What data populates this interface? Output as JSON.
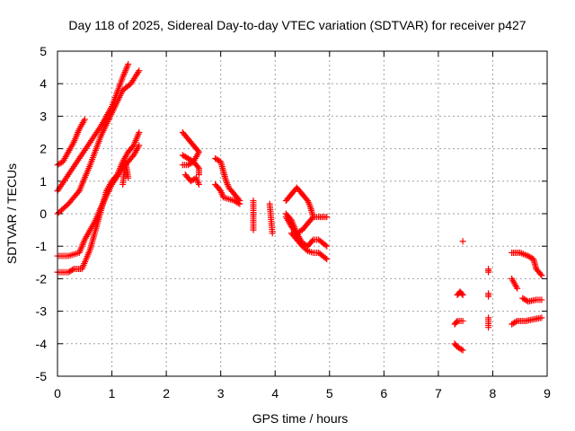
{
  "chart_data": {
    "type": "scatter",
    "title": "Day 118 of 2025, Sidereal Day-to-day VTEC variation (SDTVAR) for receiver p427",
    "xlabel": "GPS time / hours",
    "ylabel": "SDTVAR / TECUs",
    "xlim": [
      0,
      9
    ],
    "ylim": [
      -5,
      5
    ],
    "xticks": [
      "0",
      "1",
      "2",
      "3",
      "4",
      "5",
      "6",
      "7",
      "8",
      "9"
    ],
    "yticks": [
      "-5",
      "-4",
      "-3",
      "-2",
      "-1",
      "0",
      "1",
      "2",
      "3",
      "4",
      "5"
    ],
    "grid": true,
    "marker": "+",
    "color": "#ff0000",
    "segments": [
      [
        [
          0.0,
          1.5
        ],
        [
          0.1,
          1.6
        ],
        [
          0.2,
          1.9
        ],
        [
          0.3,
          2.2
        ],
        [
          0.4,
          2.6
        ],
        [
          0.5,
          2.9
        ]
      ],
      [
        [
          0.0,
          0.7
        ],
        [
          0.2,
          1.2
        ],
        [
          0.4,
          1.7
        ],
        [
          0.6,
          2.2
        ],
        [
          0.8,
          2.7
        ],
        [
          1.0,
          3.3
        ],
        [
          1.2,
          4.2
        ],
        [
          1.3,
          4.6
        ]
      ],
      [
        [
          0.0,
          0.0
        ],
        [
          0.2,
          0.3
        ],
        [
          0.4,
          0.7
        ],
        [
          0.6,
          1.5
        ],
        [
          0.8,
          2.4
        ],
        [
          1.0,
          3.1
        ],
        [
          1.2,
          3.8
        ],
        [
          1.35,
          4.0
        ],
        [
          1.5,
          4.4
        ]
      ],
      [
        [
          0.0,
          -1.3
        ],
        [
          0.2,
          -1.3
        ],
        [
          0.4,
          -1.2
        ],
        [
          0.5,
          -0.8
        ],
        [
          0.7,
          -0.2
        ],
        [
          0.8,
          0.2
        ],
        [
          1.0,
          0.9
        ],
        [
          1.2,
          1.4
        ],
        [
          1.4,
          1.8
        ],
        [
          1.5,
          2.1
        ]
      ],
      [
        [
          0.0,
          -1.8
        ],
        [
          0.2,
          -1.8
        ],
        [
          0.3,
          -1.7
        ],
        [
          0.45,
          -1.7
        ],
        [
          0.6,
          -1.1
        ],
        [
          0.7,
          -0.5
        ],
        [
          0.8,
          0.1
        ],
        [
          0.9,
          0.7
        ],
        [
          1.0,
          1.0
        ],
        [
          1.1,
          1.2
        ],
        [
          1.2,
          1.6
        ],
        [
          1.3,
          1.9
        ],
        [
          1.4,
          2.1
        ],
        [
          1.5,
          2.5
        ]
      ],
      [
        [
          1.2,
          0.9
        ],
        [
          1.25,
          1.6
        ],
        [
          1.3,
          1.1
        ]
      ],
      [
        [
          2.3,
          2.5
        ],
        [
          2.4,
          2.3
        ],
        [
          2.5,
          2.1
        ],
        [
          2.6,
          1.9
        ],
        [
          2.5,
          1.6
        ],
        [
          2.4,
          1.5
        ],
        [
          2.3,
          1.5
        ]
      ],
      [
        [
          2.3,
          1.8
        ],
        [
          2.4,
          1.7
        ],
        [
          2.5,
          1.6
        ],
        [
          2.6,
          1.4
        ],
        [
          2.6,
          1.2
        ]
      ],
      [
        [
          2.35,
          1.2
        ],
        [
          2.45,
          1.0
        ],
        [
          2.55,
          1.1
        ],
        [
          2.6,
          0.9
        ]
      ],
      [
        [
          2.9,
          1.7
        ],
        [
          3.0,
          1.6
        ],
        [
          3.05,
          1.3
        ],
        [
          3.1,
          1.0
        ],
        [
          3.15,
          0.8
        ],
        [
          3.25,
          0.6
        ],
        [
          3.35,
          0.4
        ]
      ],
      [
        [
          2.9,
          0.9
        ],
        [
          3.0,
          0.7
        ],
        [
          3.05,
          0.5
        ],
        [
          3.15,
          0.45
        ],
        [
          3.25,
          0.4
        ],
        [
          3.35,
          0.3
        ]
      ],
      [
        [
          3.6,
          0.4
        ],
        [
          3.6,
          -0.5
        ]
      ],
      [
        [
          3.9,
          0.3
        ],
        [
          3.95,
          -0.6
        ]
      ],
      [
        [
          4.2,
          0.4
        ],
        [
          4.3,
          0.6
        ],
        [
          4.4,
          0.8
        ],
        [
          4.5,
          0.6
        ],
        [
          4.6,
          0.4
        ],
        [
          4.65,
          0.2
        ],
        [
          4.7,
          -0.1
        ]
      ],
      [
        [
          4.2,
          -0.1
        ],
        [
          4.3,
          -0.4
        ],
        [
          4.4,
          -0.6
        ],
        [
          4.5,
          -0.5
        ],
        [
          4.6,
          -0.3
        ],
        [
          4.7,
          -0.1
        ],
        [
          4.8,
          -0.1
        ],
        [
          4.95,
          -0.1
        ]
      ],
      [
        [
          4.2,
          0.0
        ],
        [
          4.3,
          -0.2
        ],
        [
          4.4,
          -0.6
        ],
        [
          4.5,
          -0.9
        ],
        [
          4.6,
          -1.0
        ],
        [
          4.7,
          -0.8
        ],
        [
          4.8,
          -0.8
        ],
        [
          4.95,
          -1.0
        ]
      ],
      [
        [
          4.3,
          -0.6
        ],
        [
          4.4,
          -0.8
        ],
        [
          4.5,
          -1.0
        ],
        [
          4.6,
          -1.15
        ],
        [
          4.7,
          -1.2
        ],
        [
          4.8,
          -1.2
        ],
        [
          4.95,
          -1.4
        ]
      ],
      [
        [
          7.35,
          -2.5
        ],
        [
          7.4,
          -2.4
        ],
        [
          7.45,
          -2.5
        ]
      ],
      [
        [
          7.3,
          -3.4
        ],
        [
          7.35,
          -3.3
        ],
        [
          7.45,
          -3.3
        ]
      ],
      [
        [
          7.3,
          -4.0
        ],
        [
          7.35,
          -4.1
        ],
        [
          7.45,
          -4.2
        ]
      ],
      [
        [
          7.45,
          -0.85
        ]
      ],
      [
        [
          7.92,
          -1.7
        ],
        [
          7.92,
          -1.8
        ]
      ],
      [
        [
          7.92,
          -2.45
        ],
        [
          7.92,
          -2.55
        ]
      ],
      [
        [
          7.92,
          -3.2
        ],
        [
          7.92,
          -3.5
        ]
      ],
      [
        [
          8.35,
          -1.2
        ],
        [
          8.5,
          -1.2
        ],
        [
          8.65,
          -1.3
        ],
        [
          8.75,
          -1.4
        ],
        [
          8.8,
          -1.7
        ],
        [
          8.9,
          -1.9
        ]
      ],
      [
        [
          8.35,
          -3.4
        ],
        [
          8.45,
          -3.3
        ],
        [
          8.6,
          -3.3
        ],
        [
          8.75,
          -3.25
        ],
        [
          8.9,
          -3.2
        ]
      ],
      [
        [
          8.35,
          -2.0
        ],
        [
          8.45,
          -2.3
        ]
      ],
      [
        [
          8.55,
          -2.6
        ],
        [
          8.65,
          -2.7
        ],
        [
          8.8,
          -2.65
        ],
        [
          8.9,
          -2.65
        ]
      ]
    ]
  }
}
